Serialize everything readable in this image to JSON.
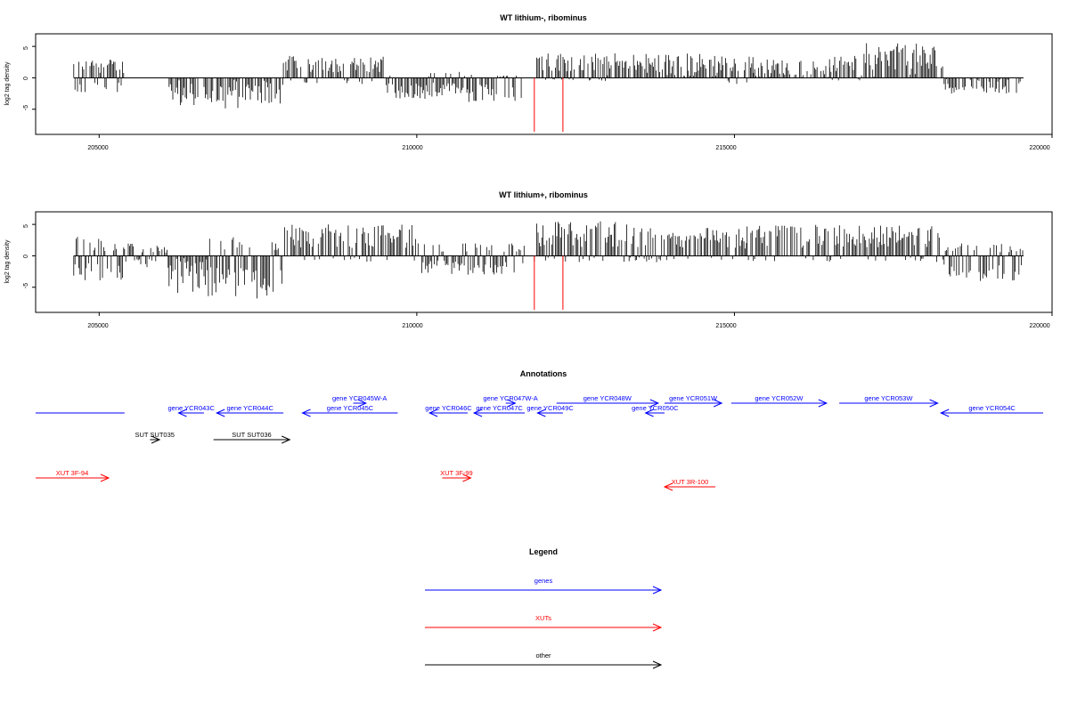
{
  "chart_data": [
    {
      "type": "bar",
      "title": "WT lithium-, ribominus",
      "ylabel": "log2 tag density",
      "xlabel": "",
      "xlim": [
        204000,
        220000
      ],
      "ylim": [
        -9,
        7
      ],
      "x_ticks": [
        "205000",
        "210000",
        "215000",
        "220000"
      ],
      "y_ticks": [
        "5",
        "0",
        "-5"
      ],
      "grid": false,
      "baseline_range": [
        204600,
        219550
      ],
      "markers": [
        211850,
        212300
      ],
      "marker_color": "#ff0000",
      "signal_regions": [
        {
          "x": [
            204600,
            205400
          ],
          "values": [
            -2.5,
            3
          ]
        },
        {
          "x": [
            206100,
            206800
          ],
          "values": [
            -5,
            0
          ]
        },
        {
          "x": [
            206850,
            207900
          ],
          "values": [
            -5,
            0
          ]
        },
        {
          "x": [
            207900,
            209500
          ],
          "values": [
            -1,
            3.5
          ]
        },
        {
          "x": [
            209500,
            210200
          ],
          "values": [
            -3.5,
            0.5
          ]
        },
        {
          "x": [
            210200,
            210800
          ],
          "values": [
            -3,
            1
          ]
        },
        {
          "x": [
            210800,
            211700
          ],
          "values": [
            -4,
            0.5
          ]
        },
        {
          "x": [
            211850,
            213000
          ],
          "values": [
            -0.5,
            4
          ]
        },
        {
          "x": [
            213000,
            214800
          ],
          "values": [
            0,
            4
          ]
        },
        {
          "x": [
            214800,
            215300
          ],
          "values": [
            -1,
            3.5
          ]
        },
        {
          "x": [
            215300,
            216500
          ],
          "values": [
            0,
            3
          ]
        },
        {
          "x": [
            216500,
            217000
          ],
          "values": [
            -0.5,
            3.5
          ]
        },
        {
          "x": [
            217000,
            218300
          ],
          "values": [
            0,
            5.5
          ]
        },
        {
          "x": [
            218300,
            219550
          ],
          "values": [
            -2.5,
            0
          ]
        }
      ]
    },
    {
      "type": "bar",
      "title": "WT lithium+, ribominus",
      "ylabel": "log2 tag density",
      "xlabel": "",
      "xlim": [
        204000,
        220000
      ],
      "ylim": [
        -9,
        7
      ],
      "x_ticks": [
        "205000",
        "210000",
        "215000",
        "220000"
      ],
      "y_ticks": [
        "5",
        "0",
        "-5"
      ],
      "grid": false,
      "baseline_range": [
        204600,
        219550
      ],
      "markers": [
        211850,
        212300
      ],
      "marker_color": "#ff0000",
      "signal_regions": [
        {
          "x": [
            204600,
            205400
          ],
          "values": [
            -4,
            3
          ]
        },
        {
          "x": [
            205400,
            206100
          ],
          "values": [
            -2,
            2
          ]
        },
        {
          "x": [
            206100,
            206700
          ],
          "values": [
            -6,
            0
          ]
        },
        {
          "x": [
            206700,
            207900
          ],
          "values": [
            -7,
            3
          ]
        },
        {
          "x": [
            207900,
            210000
          ],
          "values": [
            -1,
            5
          ]
        },
        {
          "x": [
            210000,
            211700
          ],
          "values": [
            -3,
            2
          ]
        },
        {
          "x": [
            211850,
            213500
          ],
          "values": [
            -1,
            5.5
          ]
        },
        {
          "x": [
            213500,
            215200
          ],
          "values": [
            -1,
            4.5
          ]
        },
        {
          "x": [
            215200,
            218300
          ],
          "values": [
            -1,
            5
          ]
        },
        {
          "x": [
            218300,
            219550
          ],
          "values": [
            -4,
            2
          ]
        }
      ]
    }
  ],
  "annotations": {
    "title": "Annotations",
    "xlim": [
      204000,
      220000
    ],
    "colors": {
      "gene": "#0000ff",
      "xut": "#ff0000",
      "other": "#000000"
    },
    "features": [
      {
        "label": "",
        "kind": "gene",
        "start": 204000,
        "end": 205400,
        "strand": "none",
        "row": 0
      },
      {
        "label": "gene YCR043C",
        "kind": "gene",
        "start": 206250,
        "end": 206650,
        "strand": "-",
        "row": 0
      },
      {
        "label": "gene YCR044C",
        "kind": "gene",
        "start": 206850,
        "end": 207900,
        "strand": "-",
        "row": 0
      },
      {
        "label": "gene YCR045C",
        "kind": "gene",
        "start": 208200,
        "end": 209700,
        "strand": "-",
        "row": 0
      },
      {
        "label": "gene YCR045W-A",
        "kind": "gene",
        "start": 209000,
        "end": 209200,
        "strand": "+",
        "row": 1
      },
      {
        "label": "gene YCR046C",
        "kind": "gene",
        "start": 210200,
        "end": 210800,
        "strand": "-",
        "row": 0
      },
      {
        "label": "gene YCR047C",
        "kind": "gene",
        "start": 210900,
        "end": 211700,
        "strand": "-",
        "row": 0
      },
      {
        "label": "gene YCR047W-A",
        "kind": "gene",
        "start": 211400,
        "end": 211550,
        "strand": "+",
        "row": 1
      },
      {
        "label": "gene YCR048W",
        "kind": "gene",
        "start": 212200,
        "end": 213800,
        "strand": "+",
        "row": 1
      },
      {
        "label": "gene YCR049C",
        "kind": "gene",
        "start": 211900,
        "end": 212300,
        "strand": "-",
        "row": 0
      },
      {
        "label": "gene YCR050C",
        "kind": "gene",
        "start": 213600,
        "end": 213900,
        "strand": "-",
        "row": 0
      },
      {
        "label": "gene YCR051W",
        "kind": "gene",
        "start": 213900,
        "end": 214800,
        "strand": "+",
        "row": 1
      },
      {
        "label": "gene YCR052W",
        "kind": "gene",
        "start": 214950,
        "end": 216450,
        "strand": "+",
        "row": 1
      },
      {
        "label": "gene YCR053W",
        "kind": "gene",
        "start": 216650,
        "end": 218200,
        "strand": "+",
        "row": 1
      },
      {
        "label": "gene YCR054C",
        "kind": "gene",
        "start": 218250,
        "end": 220000,
        "strand": "-",
        "row": 0
      },
      {
        "label": "SUT SUT035",
        "kind": "other",
        "start": 205800,
        "end": 205950,
        "strand": "+",
        "row": 2
      },
      {
        "label": "SUT SUT036",
        "kind": "other",
        "start": 206800,
        "end": 208000,
        "strand": "+",
        "row": 2
      },
      {
        "label": "XUT 3F-94",
        "kind": "xut",
        "start": 204000,
        "end": 205150,
        "strand": "+",
        "row": 3
      },
      {
        "label": "XUT 3F-99",
        "kind": "xut",
        "start": 210400,
        "end": 210850,
        "strand": "+",
        "row": 3
      },
      {
        "label": "XUT 3R-100",
        "kind": "xut",
        "start": 213900,
        "end": 214700,
        "strand": "-",
        "row": 4
      }
    ]
  },
  "legend": {
    "title": "Legend",
    "entries": [
      {
        "label": "genes",
        "color": "#0000ff"
      },
      {
        "label": "XUTs",
        "color": "#ff0000"
      },
      {
        "label": "other",
        "color": "#000000"
      }
    ]
  }
}
